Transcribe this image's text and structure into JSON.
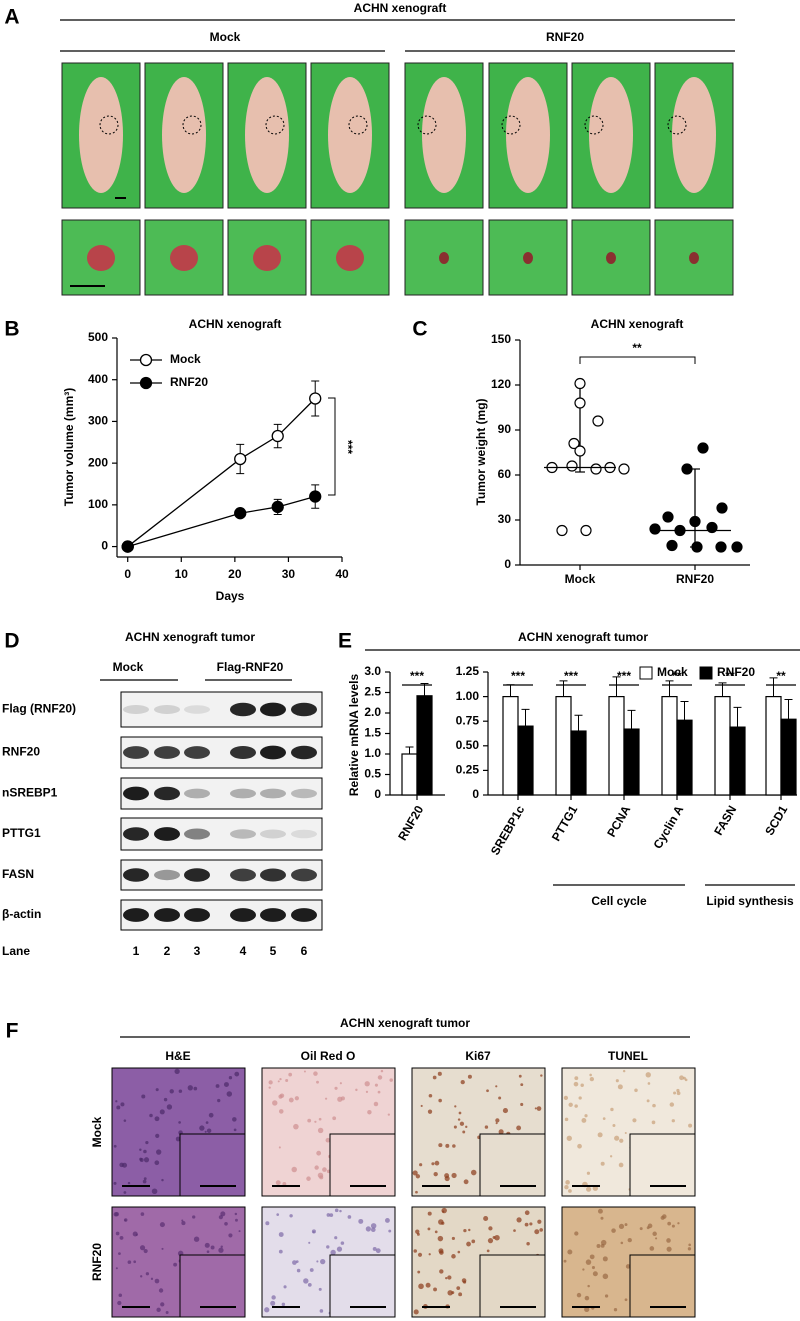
{
  "figure": {
    "panel_labels": [
      "A",
      "B",
      "C",
      "D",
      "E",
      "F"
    ]
  },
  "panel_a": {
    "title": "ACHN xenograft",
    "groups": [
      "Mock",
      "RNF20"
    ]
  },
  "panel_d": {
    "title": "ACHN xenograft tumor",
    "groups": [
      "Mock",
      "Flag-RNF20"
    ],
    "rows": [
      "Flag (RNF20)",
      "RNF20",
      "nSREBP1",
      "PTTG1",
      "FASN",
      "β-actin"
    ],
    "lane_label": "Lane",
    "lanes": [
      "1",
      "2",
      "3",
      "4",
      "5",
      "6"
    ]
  },
  "panel_f": {
    "title": "ACHN xenograft tumor",
    "columns": [
      "H&E",
      "Oil Red O",
      "Ki67",
      "TUNEL"
    ],
    "rows": [
      "Mock",
      "RNF20"
    ]
  },
  "chart_data": [
    {
      "type": "line",
      "title": "ACHN xenograft",
      "x_label": "Days",
      "y_label": "Tumor volume (mm³)",
      "x": [
        0,
        21,
        28,
        35
      ],
      "series": [
        {
          "name": "Mock",
          "color": "#ffffff",
          "values": [
            0,
            210,
            265,
            355
          ],
          "errors": [
            0,
            35,
            28,
            42
          ]
        },
        {
          "name": "RNF20",
          "color": "#000000",
          "values": [
            0,
            80,
            95,
            120
          ],
          "errors": [
            0,
            8,
            18,
            28
          ]
        }
      ],
      "xlim": [
        -2,
        40
      ],
      "xticks": [
        0,
        10,
        20,
        30,
        40
      ],
      "ylim": [
        -25,
        500
      ],
      "yticks": [
        0,
        100,
        200,
        300,
        400,
        500
      ],
      "annotations": [
        "***"
      ]
    },
    {
      "type": "strip",
      "title": "ACHN xenograft",
      "y_label": "Tumor weight (mg)",
      "categories": [
        "Mock",
        "RNF20"
      ],
      "series": [
        {
          "name": "Mock",
          "color": "#ffffff",
          "values": [
            121,
            108,
            96,
            81,
            76,
            65,
            66,
            64,
            65,
            64,
            23,
            23
          ],
          "median": 65,
          "whisker": [
            62,
            121
          ]
        },
        {
          "name": "RNF20",
          "color": "#000000",
          "values": [
            78,
            64,
            38,
            32,
            29,
            24,
            25,
            23,
            13,
            12,
            12,
            12
          ],
          "median": 23,
          "whisker": [
            12,
            64
          ]
        }
      ],
      "ylim": [
        0,
        150
      ],
      "yticks": [
        0,
        30,
        60,
        90,
        120,
        150
      ],
      "annotations": [
        "**"
      ]
    },
    {
      "type": "bar",
      "title": "ACHN xenograft tumor",
      "y_label": "Relative mRNA levels",
      "categories": [
        "RNF20"
      ],
      "series": [
        {
          "name": "Mock",
          "color": "#ffffff",
          "values": [
            1.0
          ],
          "errors": [
            0.17
          ]
        },
        {
          "name": "RNF20",
          "color": "#000000",
          "values": [
            2.42
          ],
          "errors": [
            0.3
          ]
        }
      ],
      "ylim": [
        0,
        3
      ],
      "yticks": [
        0,
        0.5,
        {
          "value": 1,
          "label": "1.0"
        },
        1.5,
        {
          "value": 2,
          "label": "2.0"
        },
        2.5,
        {
          "value": 3,
          "label": "3.0"
        }
      ],
      "annotations": [
        "***"
      ]
    },
    {
      "type": "bar",
      "categories": [
        "SREBP1c",
        "PTTG1",
        "PCNA",
        "Cyclin A",
        "FASN",
        "SCD1"
      ],
      "series": [
        {
          "name": "Mock",
          "color": "#ffffff",
          "values": [
            1,
            1,
            1,
            1,
            1,
            1
          ],
          "errors": [
            0.12,
            0.16,
            0.2,
            0.16,
            0.14,
            0.19
          ]
        },
        {
          "name": "RNF20",
          "color": "#000000",
          "values": [
            0.7,
            0.65,
            0.67,
            0.76,
            0.69,
            0.77
          ],
          "errors": [
            0.17,
            0.16,
            0.19,
            0.19,
            0.2,
            0.2
          ]
        }
      ],
      "ylim": [
        0,
        1.25
      ],
      "yticks": [
        0,
        0.25,
        {
          "value": 0.5,
          "label": "0.50"
        },
        0.75,
        {
          "value": 1,
          "label": "1.00"
        },
        1.25
      ],
      "annotations": [
        "***",
        "***",
        "***",
        "**",
        "**",
        "**"
      ],
      "groups": [
        {
          "label": "Cell cycle"
        },
        {
          "label": "Lipid synthesis"
        }
      ],
      "legend": "top-right"
    }
  ]
}
